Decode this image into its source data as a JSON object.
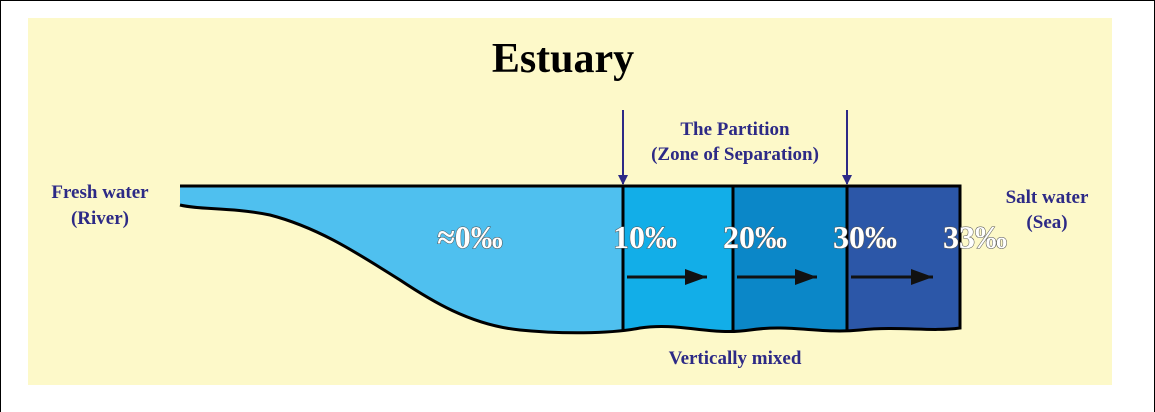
{
  "title": "Estuary",
  "partition": {
    "line1": "The Partition",
    "line2": "(Zone of Separation)"
  },
  "left": {
    "line1": "Fresh water",
    "line2": "(River)"
  },
  "right": {
    "line1": "Salt water",
    "line2": "(Sea)"
  },
  "salinity": [
    "≈0‰",
    "10‰",
    "20‰",
    "30‰",
    "33‰"
  ],
  "bottom": "Vertically mixed"
}
